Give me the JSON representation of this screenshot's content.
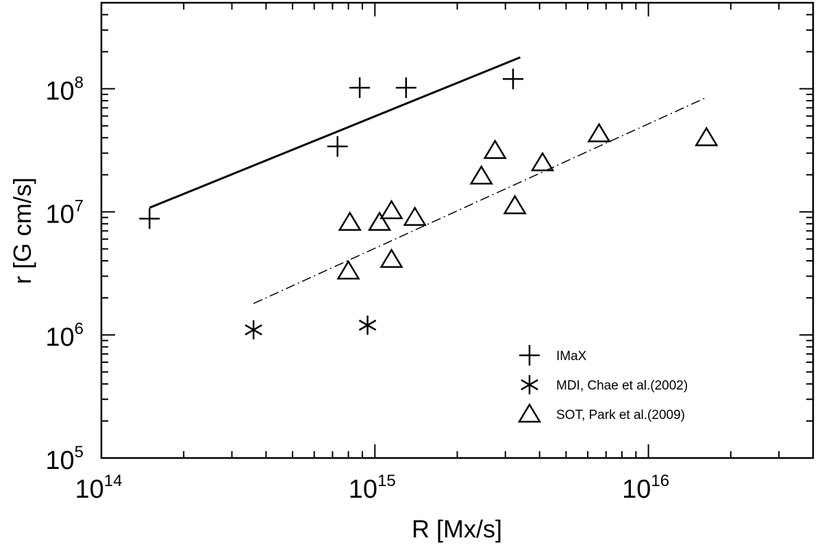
{
  "chart_data": {
    "type": "scatter",
    "x_scale": "log",
    "y_scale": "log",
    "xlabel": "R [Mx/s]",
    "ylabel": "r [G cm/s]",
    "xlim": [
      100000000000000.0,
      4e+16
    ],
    "ylim": [
      100000.0,
      500000000.0
    ],
    "x_tick_labels": [
      {
        "value": 100000000000000.0,
        "base": "10",
        "exp": "14"
      },
      {
        "value": 1000000000000000.0,
        "base": "10",
        "exp": "15"
      },
      {
        "value": 1e+16,
        "base": "10",
        "exp": "16"
      }
    ],
    "y_tick_labels": [
      {
        "value": 100000.0,
        "base": "10",
        "exp": "5"
      },
      {
        "value": 1000000.0,
        "base": "10",
        "exp": "6"
      },
      {
        "value": 10000000.0,
        "base": "10",
        "exp": "7"
      },
      {
        "value": 100000000.0,
        "base": "10",
        "exp": "8"
      }
    ],
    "legend_position": "bottom-right",
    "series": [
      {
        "name": "IMaX",
        "marker": "plus",
        "points": [
          {
            "x": 150000000000000.0,
            "y": 8800000.0
          },
          {
            "x": 730000000000000.0,
            "y": 34000000.0
          },
          {
            "x": 880000000000000.0,
            "y": 102000000.0
          },
          {
            "x": 1300000000000000.0,
            "y": 102000000.0
          },
          {
            "x": 3200000000000000.0,
            "y": 120000000.0
          }
        ]
      },
      {
        "name": "MDI, Chae et al.(2002)",
        "marker": "asterisk",
        "points": [
          {
            "x": 360000000000000.0,
            "y": 1100000.0
          },
          {
            "x": 940000000000000.0,
            "y": 1200000.0
          }
        ]
      },
      {
        "name": "SOT, Park et al.(2009)",
        "marker": "triangle",
        "points": [
          {
            "x": 800000000000000.0,
            "y": 3300000.0
          },
          {
            "x": 810000000000000.0,
            "y": 8200000.0
          },
          {
            "x": 1040000000000000.0,
            "y": 8200000.0
          },
          {
            "x": 1150000000000000.0,
            "y": 10200000.0
          },
          {
            "x": 1150000000000000.0,
            "y": 4100000.0
          },
          {
            "x": 1400000000000000.0,
            "y": 9000000.0
          },
          {
            "x": 2450000000000000.0,
            "y": 19500000.0
          },
          {
            "x": 2750000000000000.0,
            "y": 31500000.0
          },
          {
            "x": 3250000000000000.0,
            "y": 11200000.0
          },
          {
            "x": 4100000000000000.0,
            "y": 25000000.0
          },
          {
            "x": 6600000000000000.0,
            "y": 43000000.0
          },
          {
            "x": 1.63e+16,
            "y": 40000000.0
          }
        ]
      }
    ],
    "fit_lines": [
      {
        "series": "IMaX",
        "style": "solid",
        "x": [
          150000000000000.0,
          3400000000000000.0
        ],
        "y": [
          10800000.0,
          180000000.0
        ]
      },
      {
        "series": "SOT, Park et al.(2009)",
        "style": "dash-dot",
        "x": [
          360000000000000.0,
          1.63e+16
        ],
        "y": [
          1800000.0,
          85000000.0
        ]
      }
    ]
  }
}
